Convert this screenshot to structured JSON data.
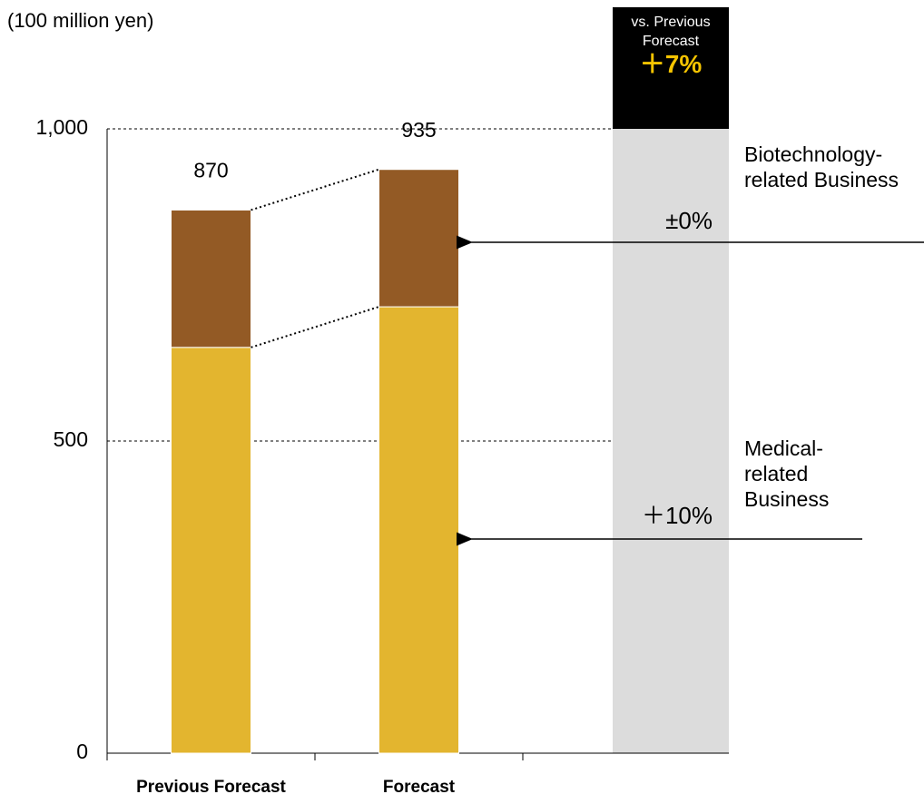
{
  "chart_data": {
    "type": "stacked_bar",
    "y_axis_label": "(100 million yen)",
    "categories": [
      "Previous Forecast",
      "Forecast"
    ],
    "series": [
      {
        "name": "Medical-related Business",
        "color": "#e3b52f",
        "values": [
          650,
          715
        ]
      },
      {
        "name": "Biotechnology-related Business",
        "color": "#935a25",
        "values": [
          220,
          220
        ]
      }
    ],
    "totals": [
      870,
      935
    ],
    "ylim": [
      0,
      1000
    ],
    "yticks": [
      0,
      500,
      {
        "value": 1000,
        "label": "1,000"
      }
    ],
    "grid": true,
    "comparison_header": "vs. Previous Forecast",
    "comparison_value": "＋7%",
    "annotations": [
      "±0%",
      "＋10%"
    ]
  }
}
